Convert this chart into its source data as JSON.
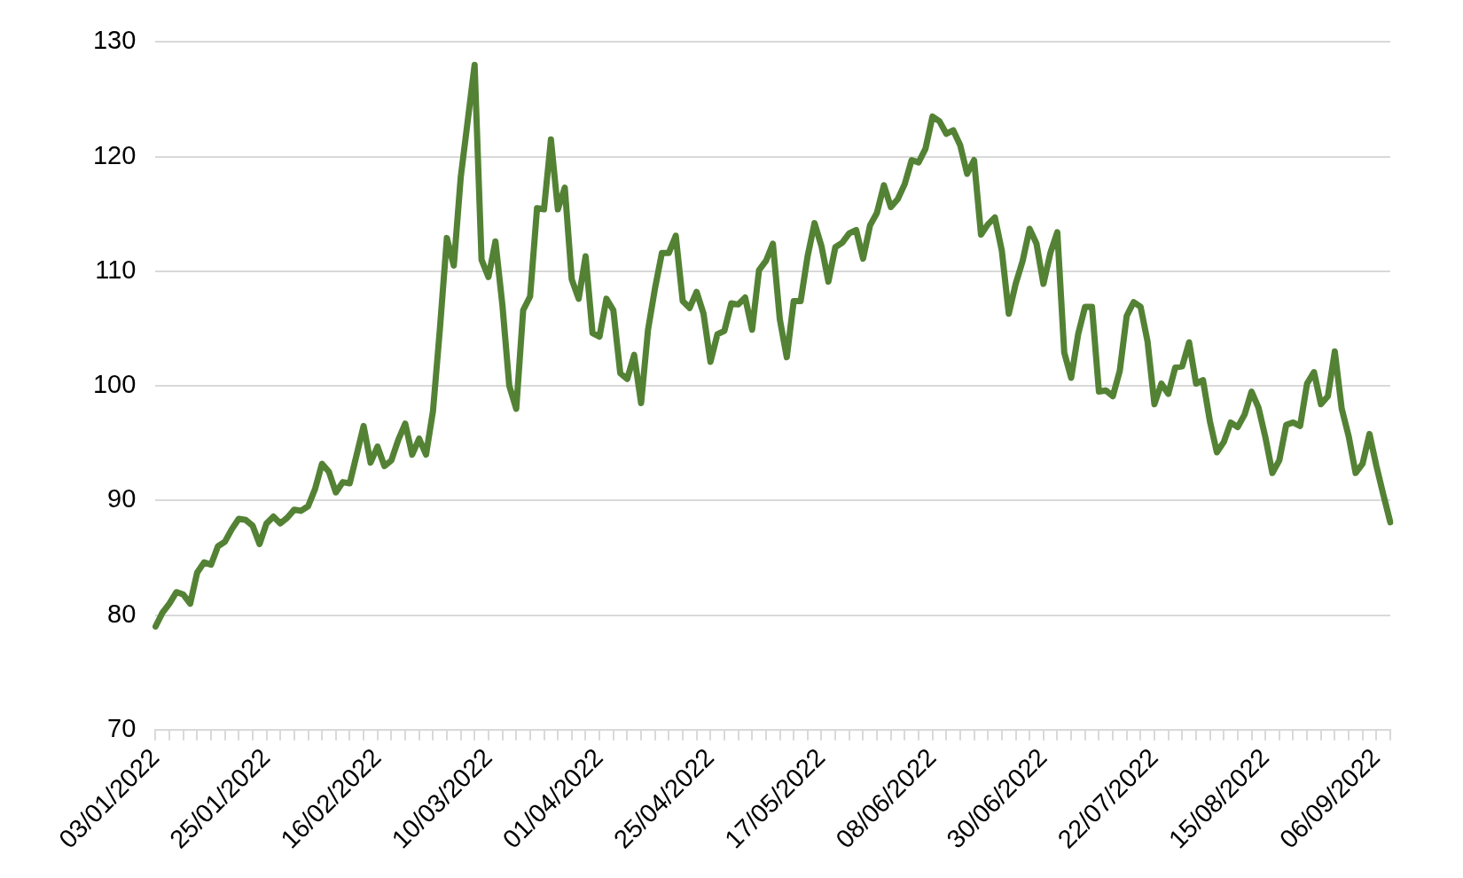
{
  "chart_data": {
    "type": "line",
    "categories": [
      "03/01/2022",
      null,
      null,
      null,
      null,
      null,
      null,
      null,
      null,
      null,
      null,
      null,
      null,
      null,
      null,
      null,
      "25/01/2022",
      null,
      null,
      null,
      null,
      null,
      null,
      null,
      null,
      null,
      null,
      null,
      null,
      null,
      null,
      null,
      "16/02/2022",
      null,
      null,
      null,
      null,
      null,
      null,
      null,
      null,
      null,
      null,
      null,
      null,
      null,
      null,
      null,
      "10/03/2022",
      null,
      null,
      null,
      null,
      null,
      null,
      null,
      null,
      null,
      null,
      null,
      null,
      null,
      null,
      null,
      "01/04/2022",
      null,
      null,
      null,
      null,
      null,
      null,
      null,
      null,
      null,
      null,
      null,
      null,
      null,
      null,
      null,
      "25/04/2022",
      null,
      null,
      null,
      null,
      null,
      null,
      null,
      null,
      null,
      null,
      null,
      null,
      null,
      null,
      null,
      "17/05/2022",
      null,
      null,
      null,
      null,
      null,
      null,
      null,
      null,
      null,
      null,
      null,
      null,
      null,
      null,
      null,
      "08/06/2022",
      null,
      null,
      null,
      null,
      null,
      null,
      null,
      null,
      null,
      null,
      null,
      null,
      null,
      null,
      null,
      "30/06/2022",
      null,
      null,
      null,
      null,
      null,
      null,
      null,
      null,
      null,
      null,
      null,
      null,
      null,
      null,
      null,
      "22/07/2022",
      null,
      null,
      null,
      null,
      null,
      null,
      null,
      null,
      null,
      null,
      null,
      null,
      null,
      null,
      null,
      "15/08/2022",
      null,
      null,
      null,
      null,
      null,
      null,
      null,
      null,
      null,
      null,
      null,
      null,
      null,
      null,
      null,
      "06/09/2022",
      null,
      null
    ],
    "series": [
      {
        "color": "#548235",
        "values": [
          79,
          80.2,
          81,
          82,
          81.8,
          81,
          83.7,
          84.6,
          84.4,
          86,
          86.4,
          87.5,
          88.4,
          88.3,
          87.8,
          86.2,
          88,
          88.6,
          88,
          88.5,
          89.2,
          89.1,
          89.5,
          91,
          93.2,
          92.5,
          90.7,
          91.6,
          91.5,
          94,
          96.5,
          93.3,
          94.7,
          93,
          93.5,
          95.3,
          96.7,
          94,
          95.4,
          94,
          97.8,
          105,
          112.9,
          110.5,
          118.2,
          123.1,
          128,
          111,
          109.5,
          112.6,
          107.1,
          100,
          98,
          106.6,
          107.8,
          115.5,
          115.4,
          121.5,
          115.4,
          117.3,
          109.3,
          107.6,
          111.3,
          104.6,
          104.3,
          107.6,
          106.6,
          101.1,
          100.6,
          102.7,
          98.5,
          104.9,
          108.5,
          111.6,
          111.6,
          113.1,
          107.4,
          106.8,
          108.2,
          106.3,
          102.1,
          104.5,
          104.8,
          107.2,
          107.1,
          107.7,
          104.9,
          110.1,
          110.9,
          112.4,
          105.8,
          102.5,
          107.4,
          107.4,
          111.3,
          114.2,
          112.2,
          109.1,
          112.1,
          112.5,
          113.3,
          113.6,
          111.1,
          114,
          115.1,
          117.5,
          115.6,
          116.3,
          117.6,
          119.7,
          119.5,
          120.7,
          123.5,
          123.1,
          122,
          122.3,
          121,
          118.5,
          119.7,
          113.2,
          114.1,
          114.7,
          111.8,
          106.3,
          108.9,
          110.9,
          113.7,
          112.4,
          108.9,
          111.6,
          113.4,
          102.9,
          100.7,
          104.5,
          106.9,
          106.9,
          99.5,
          99.6,
          99.1,
          101.3,
          106.1,
          107.3,
          106.9,
          103.9,
          98.4,
          100.2,
          99.3,
          101.6,
          101.7,
          103.8,
          100.2,
          100.5,
          96.9,
          94.2,
          95.1,
          96.8,
          96.4,
          97.5,
          99.5,
          98.1,
          95.5,
          92.4,
          93.5,
          96.6,
          96.8,
          96.5,
          100.2,
          101.2,
          98.4,
          99.1,
          103,
          98,
          95.6,
          92.4,
          93.2,
          95.8,
          93,
          90.5,
          88.1
        ]
      }
    ],
    "ylim": [
      70,
      130
    ],
    "yticks": [
      70,
      80,
      90,
      100,
      110,
      120,
      130
    ],
    "grid": "y",
    "marker": "none",
    "line_style": "solid"
  }
}
